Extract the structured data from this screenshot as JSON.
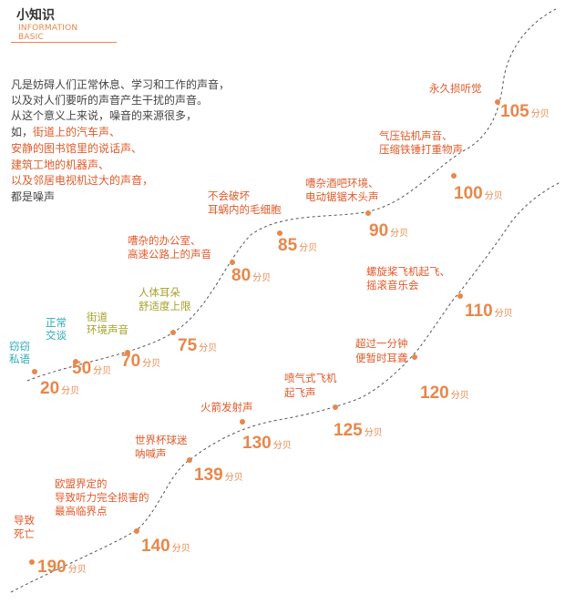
{
  "header": {
    "title": "小知识",
    "subtitle_line1": "INFORMATION",
    "subtitle_line2": "BASIC"
  },
  "intro": [
    {
      "text": "凡是妨碍人们正常休息、学习和工作的声音，",
      "highlight": false
    },
    {
      "text": "以及对人们要听的声音产生干扰的声音。",
      "highlight": false
    },
    {
      "text": "从这个意义上来说，噪音的来源很多，",
      "highlight": false
    },
    {
      "text": "如，",
      "highlight": false,
      "cont": "街道上的汽车声、"
    },
    {
      "text": "安静的图书馆里的说话声、",
      "highlight": true
    },
    {
      "text": "建筑工地的机器声、",
      "highlight": true
    },
    {
      "text": "以及邻居电视机过大的声音，",
      "highlight": true
    },
    {
      "text": "都是噪声",
      "highlight": false
    }
  ],
  "colors": {
    "value": "#e8874a",
    "label_teal": "#2aaab7",
    "label_olive": "#a6a12a",
    "label_red": "#e05a2a",
    "curve": "#555555",
    "dot": "#e8874a"
  },
  "unit": "分贝",
  "levels": [
    {
      "value": "20",
      "label": [
        "窃窃",
        "私语"
      ],
      "label_color": "teal"
    },
    {
      "value": "50",
      "label": [
        "正常",
        "交谈"
      ],
      "label_color": "teal"
    },
    {
      "value": "70",
      "label": [
        "街道",
        "环境声音"
      ],
      "label_color": "olive"
    },
    {
      "value": "75",
      "label": [
        "人体耳朵",
        "舒适度上限"
      ],
      "label_color": "olive"
    },
    {
      "value": "80",
      "label": [
        "嘈杂的办公室、",
        "高速公路上的声音"
      ],
      "label_color": "red"
    },
    {
      "value": "85",
      "label": [
        "不会破坏",
        "耳蜗内的毛细胞"
      ],
      "label_color": "red"
    },
    {
      "value": "90",
      "label": [
        "嘈杂酒吧环境、",
        "电动锯锯木头声"
      ],
      "label_color": "red"
    },
    {
      "value": "100",
      "label": [
        "气压钻机声音、",
        "压缩铁锤打重物声"
      ],
      "label_color": "red"
    },
    {
      "value": "105",
      "label": [
        "永久损听觉"
      ],
      "label_color": "red"
    },
    {
      "value": "110",
      "label": [
        "螺旋桨飞机起飞、",
        "摇滚音乐会"
      ],
      "label_color": "red"
    },
    {
      "value": "120",
      "label": [
        "超过一分钟",
        "便暂时耳聋"
      ],
      "label_color": "red"
    },
    {
      "value": "125",
      "label": [
        "喷气式飞机",
        "起飞声"
      ],
      "label_color": "red"
    },
    {
      "value": "130",
      "label": [
        "火箭发射声"
      ],
      "label_color": "red"
    },
    {
      "value": "139",
      "label": [
        "世界杯球迷",
        "呐喊声"
      ],
      "label_color": "red"
    },
    {
      "value": "140",
      "label": [
        "欧盟界定的",
        "导致听力完全损害的",
        "最高临界点"
      ],
      "label_color": "red"
    },
    {
      "value": "190",
      "label": [
        "导致",
        "死亡"
      ],
      "label_color": "red"
    }
  ]
}
